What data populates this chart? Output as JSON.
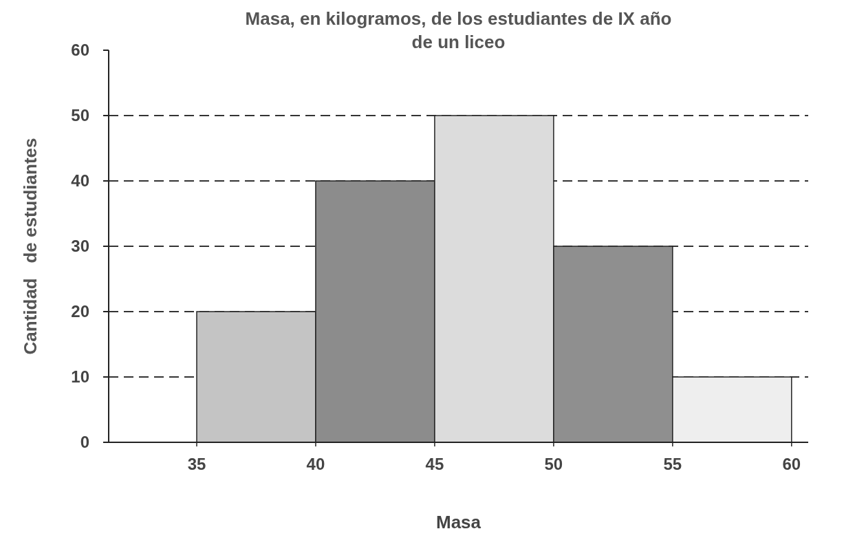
{
  "chart_data": {
    "type": "histogram",
    "title": "Masa, en kilogramos, de los estudiantes de IX año de un liceo",
    "xlabel": "Masa",
    "ylabel": "Cantidad   de estudiantes",
    "bins": [
      35,
      40,
      45,
      50,
      55,
      60
    ],
    "values": [
      20,
      40,
      50,
      30,
      10
    ],
    "colors": [
      "#c4c4c4",
      "#8c8c8c",
      "#dcdcdc",
      "#8f8f8f",
      "#eeeeee"
    ],
    "xlim": [
      31.3,
      60.7
    ],
    "xticks": [
      35,
      40,
      45,
      50,
      55,
      60
    ],
    "ylim": [
      0,
      60
    ],
    "yticks": [
      0,
      10,
      20,
      30,
      40,
      50,
      60
    ],
    "ref_lines": [
      {
        "axis": "y",
        "value": 10,
        "line_style": "dashed"
      },
      {
        "axis": "y",
        "value": 20,
        "line_style": "dashed"
      },
      {
        "axis": "y",
        "value": 30,
        "line_style": "dashed"
      },
      {
        "axis": "y",
        "value": 40,
        "line_style": "dashed"
      },
      {
        "axis": "y",
        "value": 50,
        "line_style": "dashed"
      }
    ]
  }
}
